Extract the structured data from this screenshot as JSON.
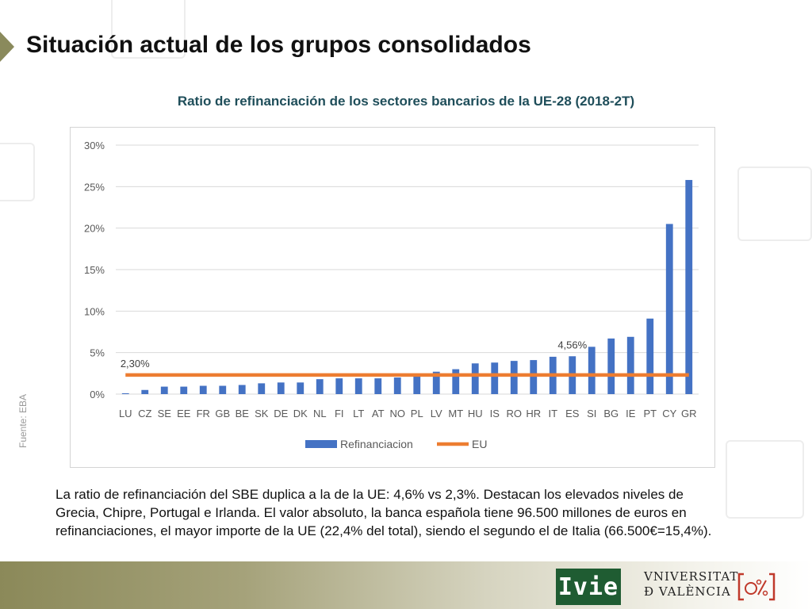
{
  "slide": {
    "title": "Situación actual de los grupos consolidados",
    "chart_title": "Ratio de refinanciación de los sectores bancarios de la UE-28 (2018-2T)",
    "source": "Fuente: EBA",
    "body": "La ratio de refinanciación del SBE duplica a la de la UE: 4,6% vs 2,3%. Destacan los elevados niveles de Grecia, Chipre, Portugal e Irlanda. El valor absoluto, la banca española tiene 96.500 millones de euros en refinanciaciones, el mayor importe de la UE (22,4% del total), siendo el segundo el de Italia (66.500€=15,4%).",
    "logo_ivie": "Ivie",
    "logo_uv_line1": "VNIVERSITAT",
    "logo_uv_line2": "Ð VALÈNCIA"
  },
  "colors": {
    "bar": "#4472c4",
    "eu_line": "#ed7d31",
    "title_arrow": "#8a8a5c",
    "chart_title": "#1f4e5a",
    "ivie_green": "#1f5c32"
  },
  "chart_data": {
    "type": "bar",
    "categories": [
      "LU",
      "CZ",
      "SE",
      "EE",
      "FR",
      "GB",
      "BE",
      "SK",
      "DE",
      "DK",
      "NL",
      "FI",
      "LT",
      "AT",
      "NO",
      "PL",
      "LV",
      "MT",
      "HU",
      "IS",
      "RO",
      "HR",
      "IT",
      "ES",
      "SI",
      "BG",
      "IE",
      "PT",
      "CY",
      "GR"
    ],
    "series": [
      {
        "name": "Refinanciacion",
        "type": "bar",
        "values": [
          0.1,
          0.5,
          0.9,
          0.9,
          1.0,
          1.0,
          1.1,
          1.3,
          1.4,
          1.4,
          1.8,
          1.9,
          1.9,
          1.9,
          2.0,
          2.2,
          2.7,
          3.0,
          3.7,
          3.8,
          4.0,
          4.1,
          4.5,
          4.56,
          5.7,
          6.7,
          6.9,
          9.1,
          20.5,
          25.8
        ]
      },
      {
        "name": "EU",
        "type": "line",
        "value": 2.3
      }
    ],
    "y_ticks": [
      "0%",
      "5%",
      "10%",
      "15%",
      "20%",
      "25%",
      "30%"
    ],
    "ylim": [
      0,
      30
    ],
    "annotations": [
      {
        "text": "2,30%",
        "category": "LU",
        "value": 2.3
      },
      {
        "text": "4,56%",
        "category": "ES",
        "value": 4.56
      }
    ],
    "grid": true,
    "legend": "bottom"
  }
}
